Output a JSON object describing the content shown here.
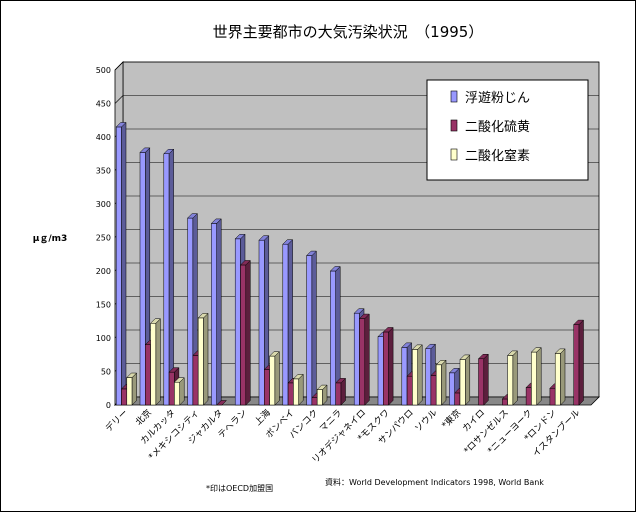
{
  "chart_data": {
    "type": "bar",
    "title": "世界主要都市の大気汚染状況　（1995）",
    "ylabel": "μｇ/m3",
    "ylim": [
      0,
      500
    ],
    "yticks": [
      0,
      50,
      100,
      150,
      200,
      250,
      300,
      350,
      400,
      450,
      500
    ],
    "categories": [
      "デリー",
      "北京",
      "カルカッタ",
      "*メキシコシティ",
      "ジャカルタ",
      "テヘラン",
      "上海",
      "ボンベイ",
      "バンコク",
      "マニラ",
      "リオデジャネイロ",
      "*モスクワ",
      "サンパウロ",
      "ソウル",
      "*東京",
      "カイロ",
      "*ロサンゼルス",
      "*ニューヨーク",
      "*ロンドン",
      "イスタンブール"
    ],
    "series": [
      {
        "name": "浮遊粉じん",
        "color": "#9999ff",
        "values": [
          415,
          377,
          375,
          279,
          271,
          248,
          246,
          240,
          223,
          200,
          137,
          102,
          86,
          84,
          48,
          null,
          null,
          null,
          null,
          null
        ]
      },
      {
        "name": "二酸化硫黄",
        "color": "#993366",
        "values": [
          24,
          90,
          49,
          74,
          0,
          209,
          53,
          33,
          11,
          33,
          129,
          109,
          43,
          44,
          18,
          69,
          9,
          26,
          25,
          120
        ]
      },
      {
        "name": "二酸化窒素",
        "color": "#ffffcc",
        "values": [
          41,
          122,
          34,
          130,
          null,
          null,
          73,
          39,
          23,
          null,
          null,
          null,
          83,
          60,
          68,
          null,
          74,
          79,
          77,
          null
        ]
      }
    ],
    "grid": true,
    "legend": "right",
    "footnote": "*印はOECD加盟国",
    "source": "資料：World Development Indicators 1998, World Bank"
  }
}
